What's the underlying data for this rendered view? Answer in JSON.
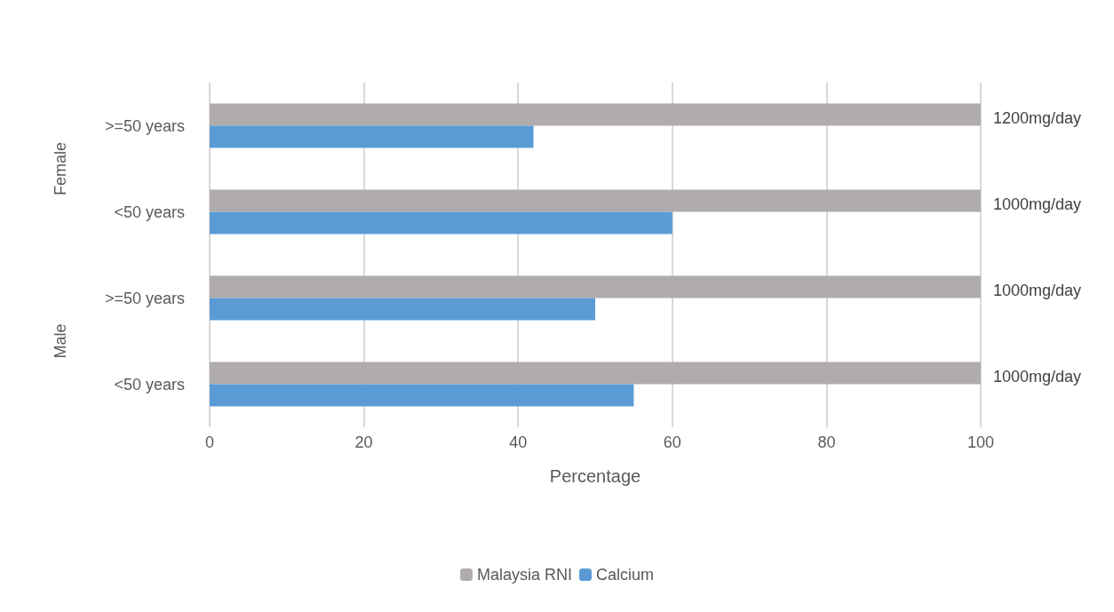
{
  "chart_data": {
    "type": "bar",
    "orientation": "horizontal",
    "categories": [
      ">=50 years",
      "<50 years",
      ">=50 years",
      "<50 years"
    ],
    "series": [
      {
        "name": "Malaysia RNI",
        "color": "#afacab",
        "values": [
          100,
          100,
          100,
          100
        ]
      },
      {
        "name": "Calcium",
        "color": "#5b9bd5",
        "values": [
          42,
          60,
          50,
          55
        ]
      }
    ],
    "y2_categories": [
      "1200mg/day",
      "1000mg/day",
      "1000mg/day",
      "1000mg/day"
    ],
    "xlabel": "Percentage",
    "xlim": [
      0,
      100
    ],
    "xticks": [
      0,
      20,
      40,
      60,
      80,
      100
    ],
    "grid": "x",
    "legend": "bottom",
    "annotations": [
      "Female",
      "Male"
    ]
  }
}
